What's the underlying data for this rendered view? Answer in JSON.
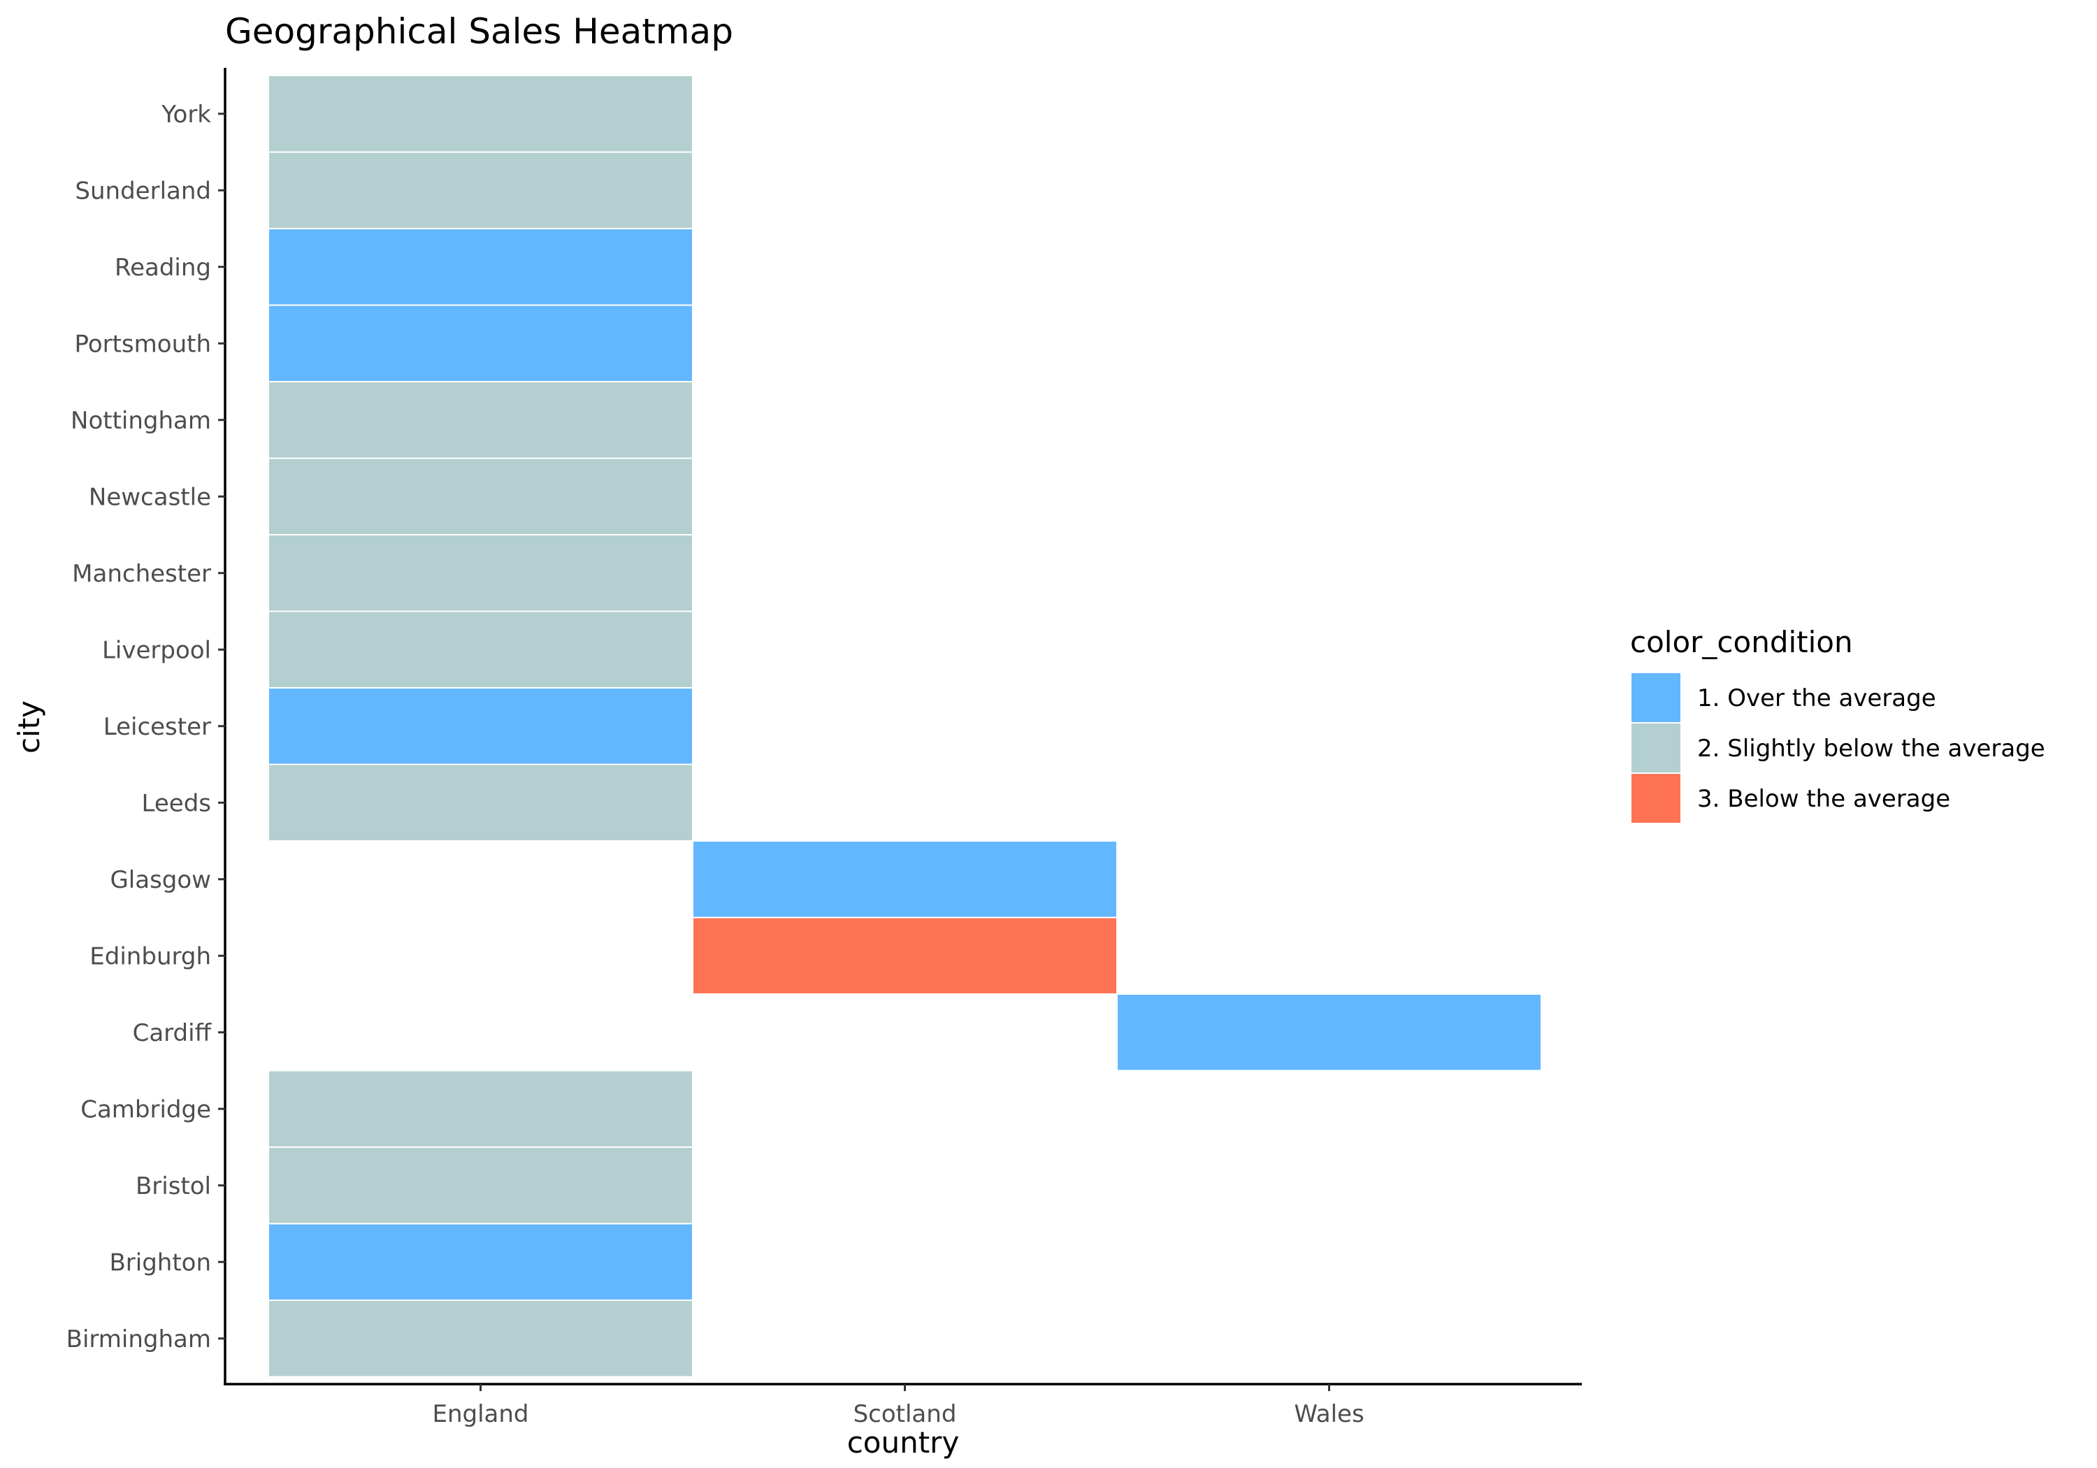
{
  "chart_data": {
    "type": "heatmap",
    "title": "Geographical Sales Heatmap",
    "xlabel": "country",
    "ylabel": "city",
    "x_categories": [
      "England",
      "Scotland",
      "Wales"
    ],
    "y_categories": [
      "Birmingham",
      "Brighton",
      "Bristol",
      "Cambridge",
      "Cardiff",
      "Edinburgh",
      "Glasgow",
      "Leeds",
      "Leicester",
      "Liverpool",
      "Manchester",
      "Newcastle",
      "Nottingham",
      "Portsmouth",
      "Reading",
      "Sunderland",
      "York"
    ],
    "cells": [
      {
        "x": "England",
        "y": "Birmingham",
        "value": "2. Slightly below the average"
      },
      {
        "x": "England",
        "y": "Brighton",
        "value": "1. Over the average"
      },
      {
        "x": "England",
        "y": "Bristol",
        "value": "2. Slightly below the average"
      },
      {
        "x": "England",
        "y": "Cambridge",
        "value": "2. Slightly below the average"
      },
      {
        "x": "Wales",
        "y": "Cardiff",
        "value": "1. Over the average"
      },
      {
        "x": "Scotland",
        "y": "Edinburgh",
        "value": "3. Below the average"
      },
      {
        "x": "Scotland",
        "y": "Glasgow",
        "value": "1. Over the average"
      },
      {
        "x": "England",
        "y": "Leeds",
        "value": "2. Slightly below the average"
      },
      {
        "x": "England",
        "y": "Leicester",
        "value": "1. Over the average"
      },
      {
        "x": "England",
        "y": "Liverpool",
        "value": "2. Slightly below the average"
      },
      {
        "x": "England",
        "y": "Manchester",
        "value": "2. Slightly below the average"
      },
      {
        "x": "England",
        "y": "Newcastle",
        "value": "2. Slightly below the average"
      },
      {
        "x": "England",
        "y": "Nottingham",
        "value": "2. Slightly below the average"
      },
      {
        "x": "England",
        "y": "Portsmouth",
        "value": "1. Over the average"
      },
      {
        "x": "England",
        "y": "Reading",
        "value": "1. Over the average"
      },
      {
        "x": "England",
        "y": "Sunderland",
        "value": "2. Slightly below the average"
      },
      {
        "x": "England",
        "y": "York",
        "value": "2. Slightly below the average"
      }
    ],
    "legend": {
      "title": "color_condition",
      "placement": "right",
      "entries": [
        {
          "label": "1. Over the average",
          "color": "#63b7ff"
        },
        {
          "label": "2. Slightly below the average",
          "color": "#b4cfcf"
        },
        {
          "label": "3. Below the average",
          "color": "#ff7355"
        }
      ]
    },
    "grid": false
  }
}
